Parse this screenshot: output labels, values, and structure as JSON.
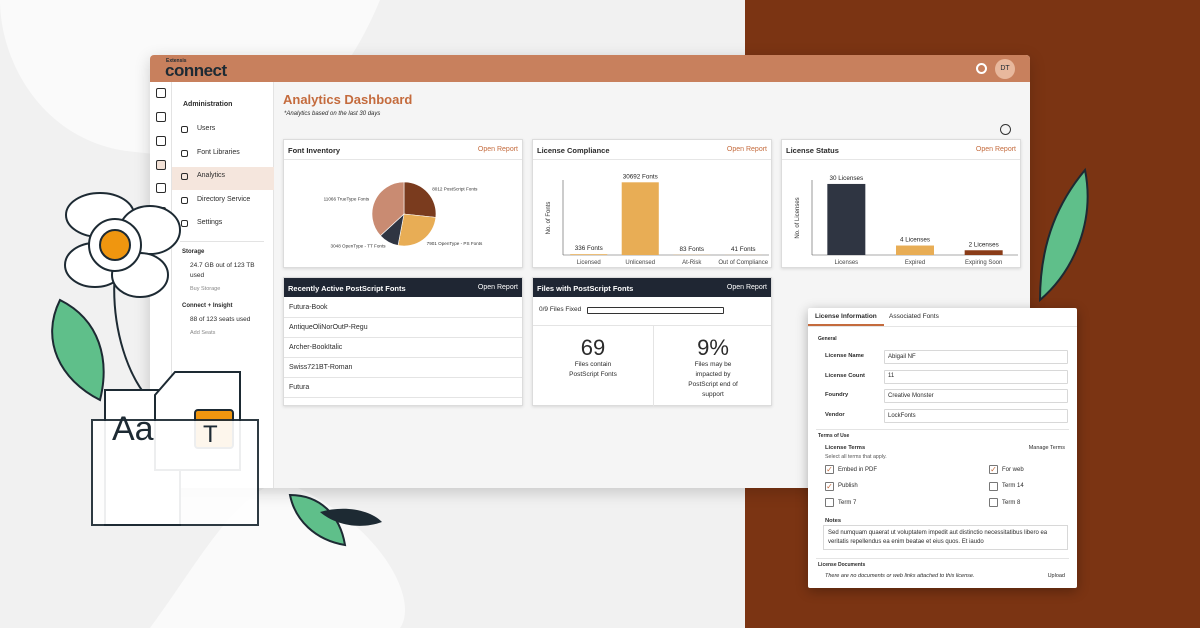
{
  "brand": {
    "small": "Extensis",
    "name": "connect"
  },
  "header": {
    "avatar": "DT"
  },
  "sidebar": {
    "title": "Administration",
    "items": [
      "Users",
      "Font Libraries",
      "Analytics",
      "Directory Service",
      "Settings"
    ],
    "active": 2,
    "storage": {
      "title": "Storage",
      "text": "24.7 GB out of 123 TB used",
      "link": "Buy Storage"
    },
    "insight": {
      "title": "Connect + Insight",
      "text": "88 of 123 seats used",
      "link": "Add Seats"
    }
  },
  "dashboard": {
    "title": "Analytics Dashboard",
    "subtitle": "*Analytics based on the last 30 days"
  },
  "chart_data": [
    {
      "type": "pie",
      "title": "Font Inventory",
      "link": "Open Report",
      "values": [
        8012,
        7901,
        3048,
        11066
      ],
      "value_labels": [
        "8012 PostScript Fonts",
        "7901 OpenType - PS Fonts",
        "3048 OpenType - TT Fonts",
        "11066 TrueType Fonts"
      ],
      "colors": [
        "#7a3b1e",
        "#e8ad55",
        "#2f3542",
        "#c98b72"
      ]
    },
    {
      "type": "bar",
      "title": "License Compliance",
      "link": "Open Report",
      "ylabel": "No. of Fonts",
      "categories": [
        "Licensed",
        "Unlicensed",
        "At-Risk",
        "Out of Compliance"
      ],
      "values": [
        336,
        30692,
        83,
        41
      ],
      "value_labels": [
        "336 Fonts",
        "30692 Fonts",
        "83 Fonts",
        "41 Fonts"
      ],
      "colors": [
        "#e8ad55",
        "#e8ad55",
        "#e8ad55",
        "#e8ad55"
      ],
      "ylim": [
        0,
        38000
      ]
    },
    {
      "type": "bar",
      "title": "License Status",
      "link": "Open Report",
      "ylabel": "No. of Licenses",
      "categories": [
        "Licenses",
        "Expired",
        "Expiring Soon"
      ],
      "values": [
        30,
        4,
        2
      ],
      "value_labels": [
        "30 Licenses",
        "4 Licenses",
        "2 Licenses"
      ],
      "colors": [
        "#2f3542",
        "#e8ad55",
        "#8a3c18"
      ],
      "ylim": [
        0,
        38
      ]
    }
  ],
  "recent_fonts": {
    "title": "Recently Active PostScript Fonts",
    "link": "Open Report",
    "rows": [
      "Futura-Book",
      "AntiqueOliNorOutP-Regu",
      "Archer-BookItalic",
      "Swiss721BT-Roman",
      "Futura"
    ]
  },
  "files": {
    "title": "Files with PostScript Fonts",
    "link": "Open Report",
    "progress": "0/9 Files Fixed",
    "stats": [
      {
        "value": "69",
        "text": "Files contain PostScript Fonts"
      },
      {
        "value": "9%",
        "text": "Files may be impacted by PostScript end of support"
      }
    ]
  },
  "license": {
    "tabs": [
      "License Information",
      "Associated Fonts"
    ],
    "general": "General",
    "fields": [
      {
        "label": "License Name",
        "value": "Abigail NF"
      },
      {
        "label": "License Count",
        "value": "11"
      },
      {
        "label": "Foundry",
        "value": "Creative Monster"
      },
      {
        "label": "Vendor",
        "value": "LockFonts"
      }
    ],
    "terms_title": "Terms of Use",
    "terms_label": "License Terms",
    "manage": "Manage Terms",
    "hint": "Select all terms that apply.",
    "terms": [
      {
        "label": "Embed in PDF",
        "checked": true
      },
      {
        "label": "For web",
        "checked": true
      },
      {
        "label": "Publish",
        "checked": true
      },
      {
        "label": "Term 14",
        "checked": false
      },
      {
        "label": "Term 7",
        "checked": false
      },
      {
        "label": "Term 8",
        "checked": false
      }
    ],
    "notes_label": "Notes",
    "notes": "Sed numquam quaerat ut voluptatem impedit aut distinctio necessitatibus libero ea veritatis repellendus ea enim beatae et eius quos. Et iaudo",
    "docs_label": "License Documents",
    "docs_text": "There are no documents or web links attached to this license.",
    "upload": "Upload"
  }
}
